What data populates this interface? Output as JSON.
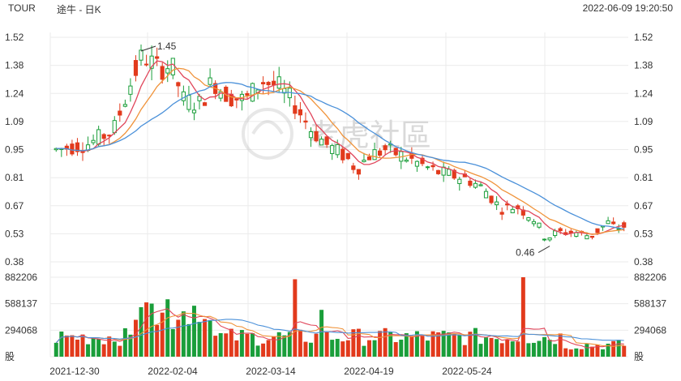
{
  "header": {
    "symbol": "TOUR",
    "name": "途牛 - 日K",
    "timestamp": "2022-06-09 19:20:50"
  },
  "watermark": {
    "text": "老虎社區"
  },
  "colors": {
    "up": "#1a9e3a",
    "down": "#e23a1c",
    "ma5": "#e0455a",
    "ma10": "#f0933a",
    "ma20": "#4a90d9"
  },
  "chart_data": [
    {
      "type": "candlestick",
      "title": "",
      "y_ticks": [
        "1.52",
        "1.38",
        "1.24",
        "1.09",
        "0.95",
        "0.81",
        "0.67",
        "0.53",
        "0.38"
      ],
      "ylim": [
        0.38,
        1.52
      ],
      "x_ticks": [
        "2021-12-30",
        "2022-02-04",
        "2022-03-14",
        "2022-04-19",
        "2022-05-24"
      ],
      "annotations": [
        {
          "label": "1.45",
          "value": 1.45,
          "at": "high"
        },
        {
          "label": "0.46",
          "value": 0.46,
          "at": "low"
        }
      ],
      "overlays": [
        "MA5",
        "MA10",
        "MA20"
      ],
      "grid": true
    },
    {
      "type": "bar",
      "title": "",
      "y_ticks": [
        "882206",
        "588137",
        "294068",
        "股"
      ],
      "ylim": [
        0,
        882206
      ],
      "overlays": [
        "MA5",
        "MA10",
        "MA20"
      ],
      "grid": true
    }
  ]
}
